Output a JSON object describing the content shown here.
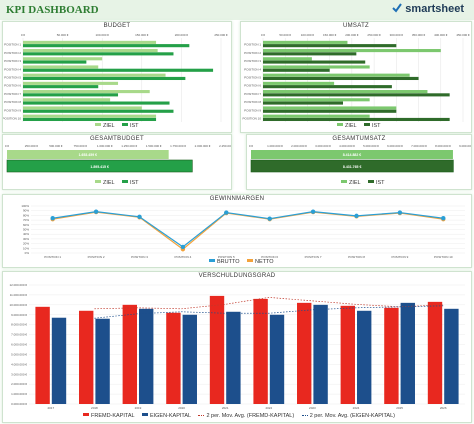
{
  "header": {
    "title": "KPI DASHBOARD",
    "brand": "smartsheet"
  },
  "colors": {
    "ziel_budget": "#a8d98a",
    "ist_budget": "#24a048",
    "ziel_umsatz": "#7cc86e",
    "ist_umsatz": "#2f6b2a",
    "brutto": "#2a9fd6",
    "netto": "#f3a23b",
    "fremd": "#e8281f",
    "eigen": "#1d4f8c",
    "mov_fremd": "#c0392b",
    "mov_eigen": "#1d4f8c"
  },
  "chart_data": [
    {
      "type": "bar",
      "title": "BUDGET",
      "orientation": "horizontal",
      "categories": [
        "POSITION 1",
        "POSITION 2",
        "POSITION 3",
        "POSITION 4",
        "POSITION 5",
        "POSITION 6",
        "POSITION 7",
        "POSITION 8",
        "POSITION 9",
        "POSITION 10"
      ],
      "x_ticks": [
        "0 €",
        "50.000 €",
        "100.000 €",
        "150.000 €",
        "200.000 €",
        "250.000 €"
      ],
      "xlim": [
        0,
        250000
      ],
      "series": [
        {
          "name": "ZIEL",
          "values": [
            168000,
            170000,
            100000,
            95000,
            180000,
            120000,
            160000,
            110000,
            150000,
            168000
          ]
        },
        {
          "name": "IST",
          "values": [
            210000,
            190000,
            80000,
            240000,
            205000,
            95000,
            120000,
            185000,
            190000,
            168000
          ]
        }
      ],
      "legend": "bottom"
    },
    {
      "type": "bar",
      "title": "UMSATZ",
      "orientation": "horizontal",
      "categories": [
        "POSITION 1",
        "POSITION 2",
        "POSITION 3",
        "POSITION 4",
        "POSITION 5",
        "POSITION 6",
        "POSITION 7",
        "POSITION 8",
        "POSITION 9",
        "POSITION 10"
      ],
      "x_ticks": [
        "0 €",
        "50.000 €",
        "100.000 €",
        "150.000 €",
        "200.000 €",
        "250.000 €",
        "300.000 €",
        "350.000 €",
        "400.000 €",
        "450.000 €"
      ],
      "xlim": [
        0,
        450000
      ],
      "series": [
        {
          "name": "ZIEL",
          "values": [
            190000,
            400000,
            110000,
            240000,
            330000,
            160000,
            370000,
            240000,
            300000,
            240000
          ]
        },
        {
          "name": "IST",
          "values": [
            300000,
            210000,
            230000,
            150000,
            350000,
            290000,
            420000,
            180000,
            300000,
            420000
          ]
        }
      ],
      "legend": "bottom"
    },
    {
      "type": "bar",
      "title": "GESAMTBUDGET",
      "orientation": "horizontal",
      "x_ticks": [
        "0 €",
        "250.000 €",
        "500.000 €",
        "750.000 €",
        "1.000.000 €",
        "1.250.000 €",
        "1.500.000 €",
        "1.750.000 €",
        "2.000.000 €",
        "2.250.000 €"
      ],
      "xlim": [
        0,
        2250000
      ],
      "series": [
        {
          "name": "ZIEL",
          "values": [
            1653459
          ],
          "label": "1.653.459 €"
        },
        {
          "name": "IST",
          "values": [
            1895415
          ],
          "label": "1.895.415 €"
        }
      ],
      "legend": "bottom"
    },
    {
      "type": "bar",
      "title": "GESAMTUMSATZ",
      "orientation": "horizontal",
      "x_ticks": [
        "0 €",
        "1.000.000 €",
        "2.000.000 €",
        "3.000.000 €",
        "4.000.000 €",
        "5.000.000 €",
        "6.000.000 €",
        "7.000.000 €",
        "8.000.000 €",
        "9.000.000 €"
      ],
      "xlim": [
        0,
        9000000
      ],
      "series": [
        {
          "name": "ZIEL",
          "values": [
            8414882
          ],
          "label": "8.414.882 €"
        },
        {
          "name": "IST",
          "values": [
            8431765
          ],
          "label": "8.431.765 €"
        }
      ],
      "legend": "bottom"
    },
    {
      "type": "line",
      "title": "GEWINNMARGEN",
      "categories": [
        "POSITION 1",
        "POSITION 2",
        "POSITION 3",
        "POSITION 4",
        "POSITION 5",
        "POSITION 6",
        "POSITION 7",
        "POSITION 8",
        "POSITION 9",
        "POSITION 10"
      ],
      "y_ticks": [
        "0%",
        "10%",
        "20%",
        "30%",
        "40%",
        "50%",
        "60%",
        "70%",
        "80%",
        "90%",
        "100%"
      ],
      "ylim": [
        0,
        100
      ],
      "series": [
        {
          "name": "BRUTTO",
          "values": [
            74,
            88,
            77,
            13,
            86,
            73,
            88,
            79,
            86,
            74
          ]
        },
        {
          "name": "NETTO",
          "values": [
            72,
            87,
            76,
            8,
            85,
            72,
            87,
            78,
            85,
            72
          ]
        }
      ],
      "legend": "bottom"
    },
    {
      "type": "bar",
      "title": "VERSCHULDUNGSGRAD",
      "categories": [
        "2017",
        "2018",
        "2019",
        "2020",
        "2021",
        "2022",
        "2023",
        "2024",
        "2025",
        "2026"
      ],
      "y_ticks": [
        "0.000.000 €",
        "1.000.000 €",
        "2.000.000 €",
        "3.000.000 €",
        "4.000.000 €",
        "5.000.000 €",
        "6.000.000 €",
        "7.000.000 €",
        "8.000.000 €",
        "9.000.000 €",
        "10.000.000 €",
        "11.000.000 €",
        "12.000.000 €"
      ],
      "ylim": [
        0,
        12000000
      ],
      "series": [
        {
          "name": "FREMD-KAPITAL",
          "values": [
            9800000,
            9400000,
            10000000,
            9200000,
            10900000,
            10600000,
            10200000,
            9900000,
            9700000,
            10300000
          ]
        },
        {
          "name": "EIGEN-KAPITAL",
          "values": [
            8700000,
            8600000,
            9600000,
            9000000,
            9300000,
            9000000,
            10000000,
            9400000,
            10200000,
            9600000
          ]
        }
      ],
      "legend_entries": [
        "FREMD-KAPITAL",
        "EIGEN-KAPITAL",
        "2 per. Mov. Avg. (FREMD-KAPITAL)",
        "2 per. Mov. Avg. (EIGEN-KAPITAL)"
      ],
      "legend": "bottom"
    }
  ]
}
